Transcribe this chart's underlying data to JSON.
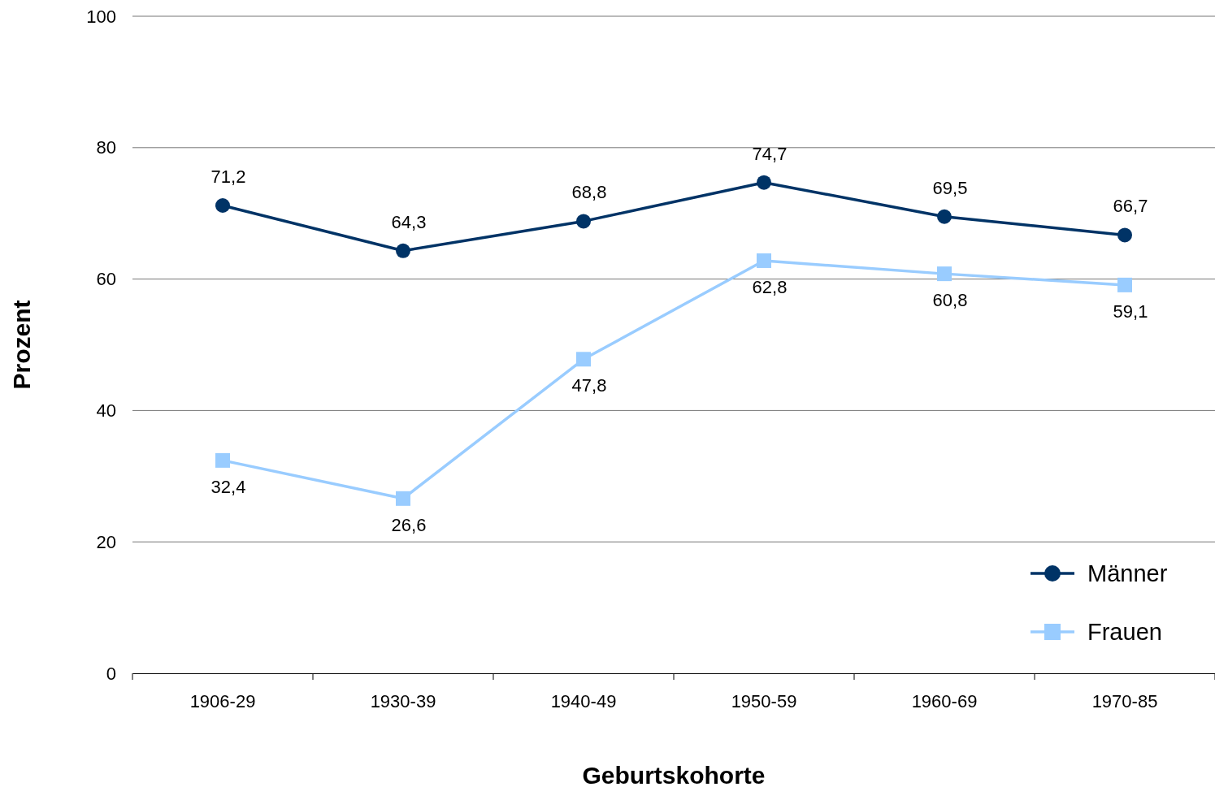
{
  "chart_data": {
    "type": "line",
    "xlabel": "Geburtskohorte",
    "ylabel": "Prozent",
    "categories": [
      "1906-29",
      "1930-39",
      "1940-49",
      "1950-59",
      "1960-69",
      "1970-85"
    ],
    "series": [
      {
        "name": "Männer",
        "color": "#003366",
        "marker": "circle",
        "values": [
          71.2,
          64.3,
          68.8,
          74.7,
          69.5,
          66.7
        ],
        "value_labels": [
          "71,2",
          "64,3",
          "68,8",
          "74,7",
          "69,5",
          "66,7"
        ]
      },
      {
        "name": "Frauen",
        "color": "#99ccff",
        "marker": "square",
        "values": [
          32.4,
          26.6,
          47.8,
          62.8,
          60.8,
          59.1
        ],
        "value_labels": [
          "32,4",
          "26,6",
          "47,8",
          "62,8",
          "60,8",
          "59,1"
        ]
      }
    ],
    "ylim": [
      0,
      100
    ],
    "yticks": [
      0,
      20,
      40,
      60,
      80,
      100
    ],
    "grid": "y",
    "legend": "bottom right",
    "line_style": "solid"
  }
}
